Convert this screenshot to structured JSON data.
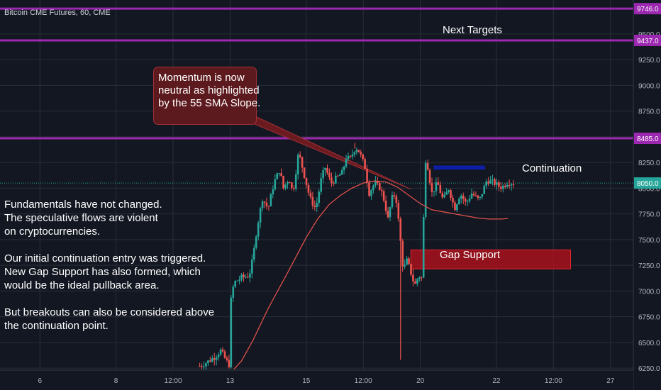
{
  "window": {
    "title": "Bitcoin CME Futures, 60, CME"
  },
  "colors": {
    "background": "#131722",
    "grid": "#2a2e39",
    "candle_up": "#26a69a",
    "candle_down": "#ef5350",
    "sma": "#e0504a",
    "level_line": "#9c27b0",
    "current_line": "#26a69a",
    "continuation_box": "#0d1fa6",
    "gap_box": "#a8121c"
  },
  "chart_data": {
    "type": "candlestick",
    "title": "Bitcoin CME Futures, 60, CME",
    "ylim": [
      6230,
      9830
    ],
    "y_ticks": [
      6250,
      6500,
      6750,
      7000,
      7250,
      7500,
      7750,
      8000,
      8250,
      8500,
      8750,
      9000,
      9250,
      9500
    ],
    "y_tick_labels": [
      "6250.0",
      "6500.0",
      "6750.0",
      "7000.0",
      "7250.0",
      "7500.0",
      "7750.0",
      "8000.0",
      "8250.0",
      "8500.0",
      "8750.0",
      "9000.0",
      "9250.0",
      "9500.0"
    ],
    "x_ticks": [
      {
        "label": "6",
        "t": 0.0
      },
      {
        "label": "8",
        "t": 2.0
      },
      {
        "label": "12:00",
        "t": 3.5
      },
      {
        "label": "13",
        "t": 5.0
      },
      {
        "label": "15",
        "t": 7.0
      },
      {
        "label": "12:00",
        "t": 8.5
      },
      {
        "label": "20",
        "t": 10.0
      },
      {
        "label": "22",
        "t": 12.0
      },
      {
        "label": "12:00",
        "t": 13.5
      },
      {
        "label": "27",
        "t": 15.0
      }
    ],
    "xlim": [
      -1.05,
      15.6
    ],
    "price_levels": [
      {
        "value": 9746.0,
        "label": "9746.0"
      },
      {
        "value": 9437.0,
        "label": "9437.0"
      },
      {
        "value": 8485.0,
        "label": "8485.0"
      }
    ],
    "current_price": {
      "value": 8050.0,
      "label": "8050.0"
    },
    "price_path": [
      [
        4.2,
        6270
      ],
      [
        4.4,
        6310
      ],
      [
        4.6,
        6360
      ],
      [
        4.75,
        6420
      ],
      [
        4.9,
        6320
      ],
      [
        5.0,
        6270
      ],
      [
        5.02,
        6900
      ],
      [
        5.1,
        7080
      ],
      [
        5.3,
        7130
      ],
      [
        5.5,
        7150
      ],
      [
        5.6,
        7320
      ],
      [
        5.7,
        7600
      ],
      [
        5.85,
        7900
      ],
      [
        6.0,
        7800
      ],
      [
        6.15,
        8050
      ],
      [
        6.3,
        8180
      ],
      [
        6.4,
        8000
      ],
      [
        6.55,
        8100
      ],
      [
        6.65,
        7950
      ],
      [
        6.8,
        8350
      ],
      [
        7.0,
        8050
      ],
      [
        7.1,
        7900
      ],
      [
        7.25,
        7800
      ],
      [
        7.4,
        8100
      ],
      [
        7.5,
        8200
      ],
      [
        7.65,
        8050
      ],
      [
        7.8,
        8100
      ],
      [
        7.95,
        8150
      ],
      [
        8.05,
        8300
      ],
      [
        8.15,
        8280
      ],
      [
        8.3,
        8400
      ],
      [
        8.4,
        8350
      ],
      [
        8.55,
        8200
      ],
      [
        8.65,
        7950
      ],
      [
        8.8,
        8050
      ],
      [
        8.95,
        8000
      ],
      [
        9.05,
        7880
      ],
      [
        9.15,
        7700
      ],
      [
        9.25,
        7900
      ],
      [
        9.35,
        7950
      ],
      [
        9.45,
        7600
      ],
      [
        9.55,
        7200
      ],
      [
        9.65,
        7300
      ],
      [
        9.75,
        7180
      ],
      [
        9.85,
        7050
      ],
      [
        9.95,
        7150
      ],
      [
        10.05,
        7120
      ],
      [
        10.12,
        8300
      ],
      [
        10.2,
        8200
      ],
      [
        10.3,
        7950
      ],
      [
        10.45,
        8050
      ],
      [
        10.6,
        7880
      ],
      [
        10.75,
        8000
      ],
      [
        10.9,
        7800
      ],
      [
        11.05,
        7950
      ],
      [
        11.2,
        7850
      ],
      [
        11.35,
        7950
      ],
      [
        11.55,
        7880
      ],
      [
        11.75,
        8080
      ],
      [
        11.95,
        8050
      ],
      [
        12.05,
        8020
      ],
      [
        12.15,
        8010
      ],
      [
        12.3,
        8060
      ],
      [
        12.45,
        8050
      ]
    ],
    "sma_path": [
      [
        5.1,
        6240
      ],
      [
        5.3,
        6320
      ],
      [
        5.6,
        6520
      ],
      [
        6.0,
        6830
      ],
      [
        6.5,
        7170
      ],
      [
        7.0,
        7520
      ],
      [
        7.3,
        7700
      ],
      [
        7.6,
        7840
      ],
      [
        7.9,
        7930
      ],
      [
        8.2,
        8000
      ],
      [
        8.5,
        8050
      ],
      [
        8.8,
        8070
      ],
      [
        9.1,
        8060
      ],
      [
        9.4,
        8010
      ],
      [
        9.7,
        7930
      ],
      [
        10.0,
        7850
      ],
      [
        10.3,
        7790
      ],
      [
        10.6,
        7770
      ],
      [
        10.9,
        7750
      ],
      [
        11.2,
        7730
      ],
      [
        11.5,
        7710
      ],
      [
        11.8,
        7700
      ],
      [
        12.15,
        7700
      ],
      [
        12.3,
        7705
      ]
    ],
    "wick_extremes": [
      {
        "t": 9.48,
        "low": 6330,
        "high": 7700
      },
      {
        "t": 8.28,
        "high": 8440
      }
    ],
    "zones": [
      {
        "name": "Continuation",
        "t0": 10.35,
        "t1": 11.7,
        "y0": 8180,
        "y1": 8220
      },
      {
        "name": "Gap Support",
        "t0": 9.75,
        "t1": 13.95,
        "y0": 7215,
        "y1": 7400
      }
    ]
  },
  "annotations": {
    "next_targets": "Next Targets",
    "callout_lines": [
      "Momentum is now",
      "neutral as highlighted",
      "by the 55 SMA Slope."
    ],
    "continuation_label": "Continuation",
    "gap_support_label": "Gap Support",
    "left_text_lines": [
      "Fundamentals have not changed.",
      "The speculative flows are violent",
      "on cryptocurrencies.",
      "",
      "Our initial continuation entry was triggered.",
      "New Gap Support has also formed, which",
      "would be the ideal pullback area.",
      "",
      "But breakouts can also be considered above",
      "the continuation point."
    ]
  }
}
